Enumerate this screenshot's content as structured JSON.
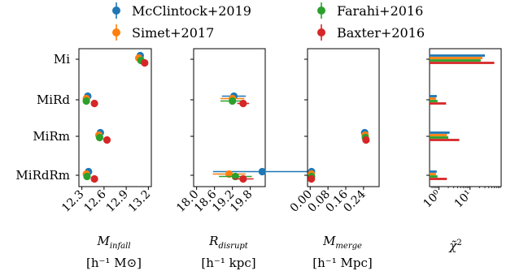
{
  "legend": {
    "entries": [
      {
        "name": "McClintock+2019",
        "color": "#1f77b4"
      },
      {
        "name": "Simet+2017",
        "color": "#ff7f0e"
      },
      {
        "name": "Farahi+2016",
        "color": "#2ca02c"
      },
      {
        "name": "Baxter+2016",
        "color": "#d62728"
      }
    ]
  },
  "chart_data": {
    "type": "scatter",
    "categories": [
      "Mi",
      "MiRd",
      "MiRm",
      "MiRdRm"
    ],
    "series_names": [
      "McClintock+2019",
      "Simet+2017",
      "Farahi+2016",
      "Baxter+2016"
    ],
    "colors": [
      "#1f77b4",
      "#ff7f0e",
      "#2ca02c",
      "#d62728"
    ],
    "panels": [
      {
        "id": "M_infall",
        "type": "scatter",
        "xlabel_symbol": "M",
        "xlabel_sub": "infall",
        "xlabel_units": "[h⁻¹ M⊙]",
        "xlim": [
          12.26,
          13.24
        ],
        "xticks": [
          12.3,
          12.6,
          12.9,
          13.2
        ],
        "xtick_labels": [
          "12.3",
          "12.6",
          "12.9",
          "13.2"
        ],
        "values": {
          "Mi": [
            13.09,
            13.07,
            13.1,
            13.15
          ],
          "MiRd": [
            12.38,
            12.36,
            12.36,
            12.47
          ],
          "MiRm": [
            12.55,
            12.53,
            12.54,
            12.64
          ],
          "MiRdRm": [
            12.39,
            12.36,
            12.37,
            12.47
          ]
        }
      },
      {
        "id": "R_disrupt",
        "type": "scatter",
        "xlabel_symbol": "R",
        "xlabel_sub": "disrupt",
        "xlabel_units": "[h⁻¹ kpc]",
        "xlim": [
          17.9,
          20.3
        ],
        "xticks": [
          18.0,
          18.6,
          19.2,
          19.8
        ],
        "xtick_labels": [
          "18.0",
          "18.6",
          "19.2",
          "19.8"
        ],
        "values": {
          "MiRd": [
            19.25,
            19.2,
            19.2,
            19.56
          ],
          "MiRdRm": [
            20.2,
            19.09,
            19.3,
            19.56
          ]
        },
        "errors": {
          "MiRd": [
            0.4,
            0.4,
            0.4,
            0.2
          ],
          "MiRdRm": [
            1.65,
            0.55,
            0.55,
            0.35
          ]
        }
      },
      {
        "id": "M_merge",
        "type": "scatter",
        "xlabel_symbol": "M",
        "xlabel_sub": "merge",
        "xlabel_units": "[h⁻¹ Mpc]",
        "xlim": [
          -0.012,
          0.31
        ],
        "xticks": [
          0.0,
          0.08,
          0.16,
          0.24
        ],
        "xtick_labels": [
          "0.00",
          "0.08",
          "0.16",
          "0.24"
        ],
        "values": {
          "MiRm": [
            0.245,
            0.247,
            0.248,
            0.251
          ],
          "MiRdRm": [
            0.006,
            0.005,
            0.006,
            0.005
          ]
        },
        "errors": {
          "MiRdRm": [
            0.012,
            0.012,
            0.012,
            0.012
          ]
        }
      },
      {
        "id": "chi2",
        "type": "bar",
        "orientation": "horizontal",
        "xscale": "log",
        "xlabel_symbol": "χ̃",
        "xlabel_sup": "2",
        "xlim": [
          0.5,
          100
        ],
        "xticks": [
          1,
          10
        ],
        "xtick_labels": [
          "10⁰",
          "10¹"
        ],
        "values": {
          "Mi": [
            30,
            25,
            22,
            60
          ],
          "MiRd": [
            0.85,
            0.8,
            0.9,
            1.7
          ],
          "MiRm": [
            2.2,
            1.8,
            2.0,
            4.5
          ],
          "MiRdRm": [
            0.85,
            0.8,
            0.9,
            1.8
          ]
        }
      }
    ]
  }
}
